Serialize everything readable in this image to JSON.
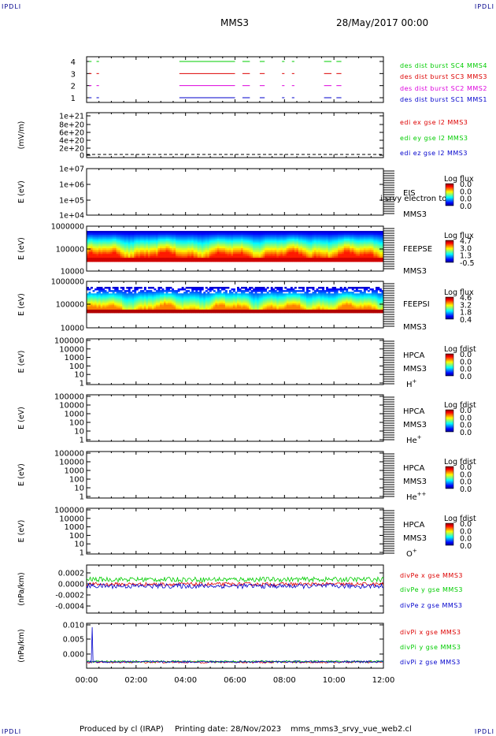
{
  "header": {
    "corner_label": "IPDLI",
    "spacecraft": "MMS3",
    "date": "28/May/2017 00:00"
  },
  "footer": {
    "produced_by": "Produced by cl (IRAP)",
    "printing_date": "Printing date: 28/Nov/2023",
    "filename": "mms_mms3_srvy_vue_web2.cl"
  },
  "colors": {
    "blue": "#0000cc",
    "red": "#dd0000",
    "magenta": "#dd00dd",
    "green": "#00cc00"
  },
  "chart_data": [
    {
      "type": "line",
      "name": "burst-availability",
      "x_range": [
        "00:00",
        "12:00"
      ],
      "y_ticks": [
        "1",
        "2",
        "3",
        "4"
      ],
      "series": [
        {
          "name": "des dist burst SC1 MMS1",
          "level": 1,
          "color": "#0000cc",
          "segments": [
            [
              0.1,
              0.2
            ],
            [
              0.4,
              0.5
            ],
            [
              3.75,
              6.0
            ],
            [
              6.3,
              6.6
            ],
            [
              7.0,
              7.2
            ],
            [
              7.9,
              8.0
            ],
            [
              8.3,
              8.4
            ],
            [
              9.6,
              9.9
            ],
            [
              10.1,
              10.3
            ]
          ]
        },
        {
          "name": "des dist burst SC2 MMS2",
          "level": 2,
          "color": "#dd00dd",
          "segments": [
            [
              0.1,
              0.2
            ],
            [
              0.4,
              0.5
            ],
            [
              3.75,
              6.0
            ],
            [
              6.3,
              6.6
            ],
            [
              7.0,
              7.2
            ],
            [
              7.9,
              8.0
            ],
            [
              8.3,
              8.4
            ],
            [
              9.6,
              9.9
            ],
            [
              10.1,
              10.3
            ]
          ]
        },
        {
          "name": "des dist burst SC3 MMS3",
          "level": 3,
          "color": "#dd0000",
          "segments": [
            [
              0.1,
              0.2
            ],
            [
              0.4,
              0.5
            ],
            [
              3.75,
              6.0
            ],
            [
              6.3,
              6.6
            ],
            [
              7.0,
              7.2
            ],
            [
              7.9,
              8.0
            ],
            [
              8.3,
              8.4
            ],
            [
              9.6,
              9.9
            ],
            [
              10.1,
              10.3
            ]
          ]
        },
        {
          "name": "des dist burst SC4 MMS4",
          "level": 4,
          "color": "#00cc00",
          "segments": [
            [
              0.1,
              0.2
            ],
            [
              0.4,
              0.5
            ],
            [
              3.75,
              6.0
            ],
            [
              6.3,
              6.6
            ],
            [
              7.0,
              7.2
            ],
            [
              7.9,
              8.0
            ],
            [
              8.3,
              8.4
            ],
            [
              9.6,
              9.9
            ],
            [
              10.1,
              10.3
            ]
          ]
        }
      ]
    },
    {
      "type": "line",
      "name": "edi-efield",
      "ylabel": "(mV/m)",
      "y_ticks": [
        "1e+21",
        "8e+20",
        "6e+20",
        "4e+20",
        "2e+20",
        "0"
      ],
      "series": [
        {
          "name": "edi ex gse l2 MMS3",
          "color": "#dd0000"
        },
        {
          "name": "edi ey gse l2 MMS3",
          "color": "#00cc00"
        },
        {
          "name": "edi ez gse l2 MMS3",
          "color": "#0000cc"
        }
      ]
    },
    {
      "type": "heatmap",
      "name": "eis",
      "ylabel": "E (eV)",
      "y_ticks": [
        "1e+07",
        "1e+06",
        "1e+05",
        "1e+04"
      ],
      "labels": [
        "EIS",
        "MMS3"
      ],
      "overlay_text": "i srvy electron tof",
      "colorbar": {
        "title": "Log flux",
        "ticks": [
          "0.0",
          "0.0",
          "0.0",
          "0.0"
        ]
      }
    },
    {
      "type": "heatmap",
      "name": "feeps-e",
      "ylabel": "E (eV)",
      "y_ticks": [
        "1000000",
        "100000",
        "10000"
      ],
      "labels": [
        "FEEPSE",
        "MMS3"
      ],
      "colorbar": {
        "title": "Log flux",
        "ticks": [
          "4.7",
          "3.0",
          "1.3",
          "-0.5"
        ]
      }
    },
    {
      "type": "heatmap",
      "name": "feeps-i",
      "ylabel": "E (eV)",
      "y_ticks": [
        "1000000",
        "100000",
        "10000"
      ],
      "labels": [
        "FEEPSI",
        "MMS3"
      ],
      "colorbar": {
        "title": "Log flux",
        "ticks": [
          "4.6",
          "3.2",
          "1.8",
          "0.4"
        ]
      }
    },
    {
      "type": "heatmap",
      "name": "hpca-h",
      "ylabel": "E (eV)",
      "y_ticks": [
        "100000",
        "10000",
        "1000",
        "100",
        "10",
        "1"
      ],
      "labels": [
        "HPCA",
        "MMS3",
        "H+"
      ],
      "colorbar": {
        "title": "Log fdist",
        "ticks": [
          "0.0",
          "0.0",
          "0.0",
          "0.0"
        ]
      }
    },
    {
      "type": "heatmap",
      "name": "hpca-he",
      "ylabel": "E (eV)",
      "y_ticks": [
        "100000",
        "10000",
        "1000",
        "100",
        "10",
        "1"
      ],
      "labels": [
        "HPCA",
        "MMS3",
        "He+"
      ],
      "colorbar": {
        "title": "Log fdist",
        "ticks": [
          "0.0",
          "0.0",
          "0.0",
          "0.0"
        ]
      }
    },
    {
      "type": "heatmap",
      "name": "hpca-he2",
      "ylabel": "E (eV)",
      "y_ticks": [
        "100000",
        "10000",
        "1000",
        "100",
        "10",
        "1"
      ],
      "labels": [
        "HPCA",
        "MMS3",
        "He++"
      ],
      "colorbar": {
        "title": "Log fdist",
        "ticks": [
          "0.0",
          "0.0",
          "0.0",
          "0.0"
        ]
      }
    },
    {
      "type": "heatmap",
      "name": "hpca-o",
      "ylabel": "E (eV)",
      "y_ticks": [
        "100000",
        "10000",
        "1000",
        "100",
        "10",
        "1"
      ],
      "labels": [
        "HPCA",
        "MMS3",
        "O+"
      ],
      "colorbar": {
        "title": "Log fdist",
        "ticks": [
          "0.0",
          "0.0",
          "0.0",
          "0.0"
        ]
      }
    },
    {
      "type": "line",
      "name": "divpe",
      "ylabel": "(nPa/km)",
      "y_ticks": [
        "0.0002",
        "0.0000",
        "-0.0002",
        "-0.0004"
      ],
      "ylim": [
        -0.0005,
        0.0003
      ],
      "series": [
        {
          "name": "divPe x gse MMS3",
          "color": "#dd0000",
          "mean": -2e-05,
          "noise": 3e-05
        },
        {
          "name": "divPe y gse MMS3",
          "color": "#00cc00",
          "mean": 6e-05,
          "noise": 4e-05
        },
        {
          "name": "divPe z gse MMS3",
          "color": "#0000cc",
          "mean": -5e-05,
          "noise": 4e-05
        }
      ]
    },
    {
      "type": "line",
      "name": "divpi",
      "ylabel": "(nPa/km)",
      "y_ticks": [
        "0.010",
        "0.005",
        "0.000"
      ],
      "ylim": [
        -0.002,
        0.012
      ],
      "series": [
        {
          "name": "divPi x gse MMS3",
          "color": "#dd0000",
          "mean": -0.0001,
          "noise": 0.0003
        },
        {
          "name": "divPi y gse MMS3",
          "color": "#00cc00",
          "mean": 0.0001,
          "noise": 0.0003
        },
        {
          "name": "divPi z gse MMS3",
          "color": "#0000cc",
          "mean": 0.0,
          "noise": 0.0003
        }
      ]
    }
  ],
  "x_axis": {
    "tick_labels": [
      "00:00",
      "02:00",
      "04:00",
      "06:00",
      "08:00",
      "10:00",
      "12:00"
    ]
  }
}
